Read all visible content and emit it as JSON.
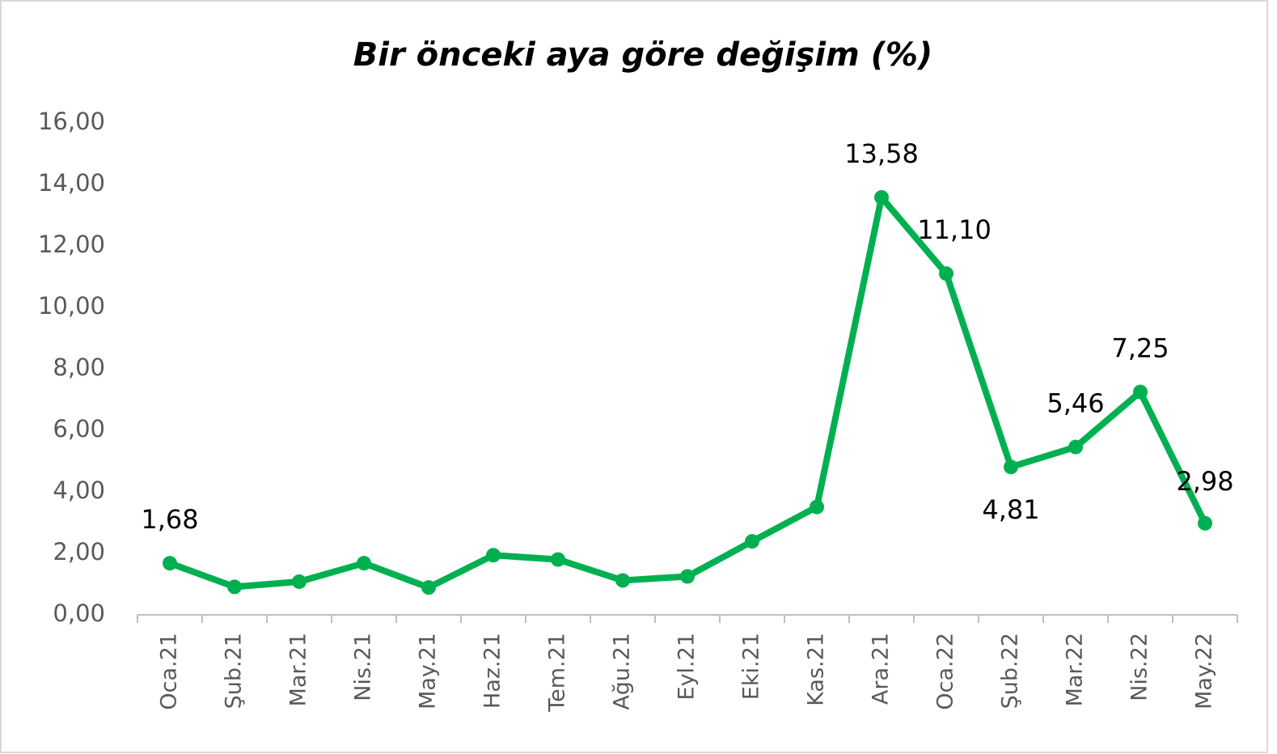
{
  "chart_data": {
    "type": "line",
    "title": "Bir önceki aya göre değişim (%)",
    "categories": [
      "Oca.21",
      "Şub.21",
      "Mar.21",
      "Nis.21",
      "May.21",
      "Haz.21",
      "Tem.21",
      "Ağu.21",
      "Eyl.21",
      "Eki.21",
      "Kas.21",
      "Ara.21",
      "Oca.22",
      "Şub.22",
      "Mar.22",
      "Nis.22",
      "May.22"
    ],
    "series": [
      {
        "name": "Bir önceki aya göre değişim (%)",
        "color": "#00b050",
        "values": [
          1.68,
          0.91,
          1.08,
          1.68,
          0.89,
          1.94,
          1.8,
          1.12,
          1.25,
          2.39,
          3.51,
          13.58,
          11.1,
          4.81,
          5.46,
          7.25,
          2.98
        ],
        "value_labels": [
          "1,68",
          null,
          null,
          null,
          null,
          null,
          null,
          null,
          null,
          null,
          null,
          "13,58",
          "11,10",
          "4,81",
          "5,46",
          "7,25",
          "2,98"
        ]
      }
    ],
    "ylim": [
      0,
      16
    ],
    "yticks": [
      {
        "value": 0,
        "label": "0,00"
      },
      {
        "value": 2,
        "label": "2,00"
      },
      {
        "value": 4,
        "label": "4,00"
      },
      {
        "value": 6,
        "label": "6,00"
      },
      {
        "value": 8,
        "label": "8,00"
      },
      {
        "value": 10,
        "label": "10,00"
      },
      {
        "value": 12,
        "label": "12,00"
      },
      {
        "value": 14,
        "label": "14,00"
      },
      {
        "value": 16,
        "label": "16,00"
      }
    ],
    "grid": false
  }
}
